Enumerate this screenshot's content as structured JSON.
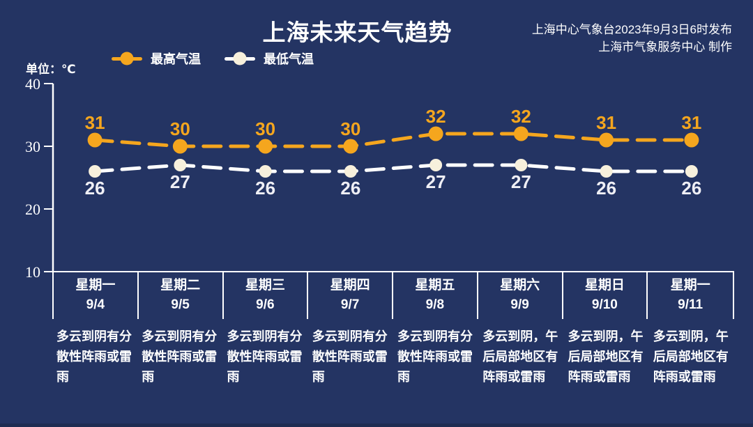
{
  "header": {
    "title": "上海未来天气趋势",
    "publisher_line1": "上海中心气象台2023年9月3日6时发布",
    "publisher_line2": "上海市气象服务中心 制作"
  },
  "unit_label": "单位：℃",
  "legend": [
    {
      "label": "最高气温",
      "line_color": "#F5A61E",
      "dot_color": "#F5A61E"
    },
    {
      "label": "最低气温",
      "line_color": "#FFFFFF",
      "dot_color": "#F7F0DC"
    }
  ],
  "chart_data": {
    "type": "line",
    "title": "上海未来天气趋势",
    "ylabel": "单位：℃",
    "categories": [
      "9/4",
      "9/5",
      "9/6",
      "9/7",
      "9/8",
      "9/9",
      "9/10",
      "9/11"
    ],
    "series": [
      {
        "name": "最高气温",
        "values": [
          31,
          30,
          30,
          30,
          32,
          32,
          31,
          31
        ],
        "color": "#F5A61E",
        "marker_fill": "#F5A61E",
        "label_color": "#F5A61E",
        "label_position": "above"
      },
      {
        "name": "最低气温",
        "values": [
          26,
          27,
          26,
          26,
          27,
          27,
          26,
          26
        ],
        "color": "#FFFFFF",
        "marker_fill": "#F7F0DC",
        "label_color": "#EFEFF5",
        "label_position": "below"
      }
    ],
    "y_ticks": [
      40,
      30,
      20,
      10
    ],
    "ylim": [
      10,
      40
    ],
    "grid": false,
    "legend_position": "top",
    "line_style": "dashed"
  },
  "days": [
    {
      "weekday": "星期一",
      "date": "9/4",
      "desc": "多云到阴有分散性阵雨或雷雨"
    },
    {
      "weekday": "星期二",
      "date": "9/5",
      "desc": "多云到阴有分散性阵雨或雷雨"
    },
    {
      "weekday": "星期三",
      "date": "9/6",
      "desc": "多云到阴有分散性阵雨或雷雨"
    },
    {
      "weekday": "星期四",
      "date": "9/7",
      "desc": "多云到阴有分散性阵雨或雷雨"
    },
    {
      "weekday": "星期五",
      "date": "9/8",
      "desc": "多云到阴有分散性阵雨或雷雨"
    },
    {
      "weekday": "星期六",
      "date": "9/9",
      "desc": "多云到阴，午后局部地区有阵雨或雷雨"
    },
    {
      "weekday": "星期日",
      "date": "9/10",
      "desc": "多云到阴，午后局部地区有阵雨或雷雨"
    },
    {
      "weekday": "星期一",
      "date": "9/11",
      "desc": "多云到阴，午后局部地区有阵雨或雷雨"
    }
  ]
}
